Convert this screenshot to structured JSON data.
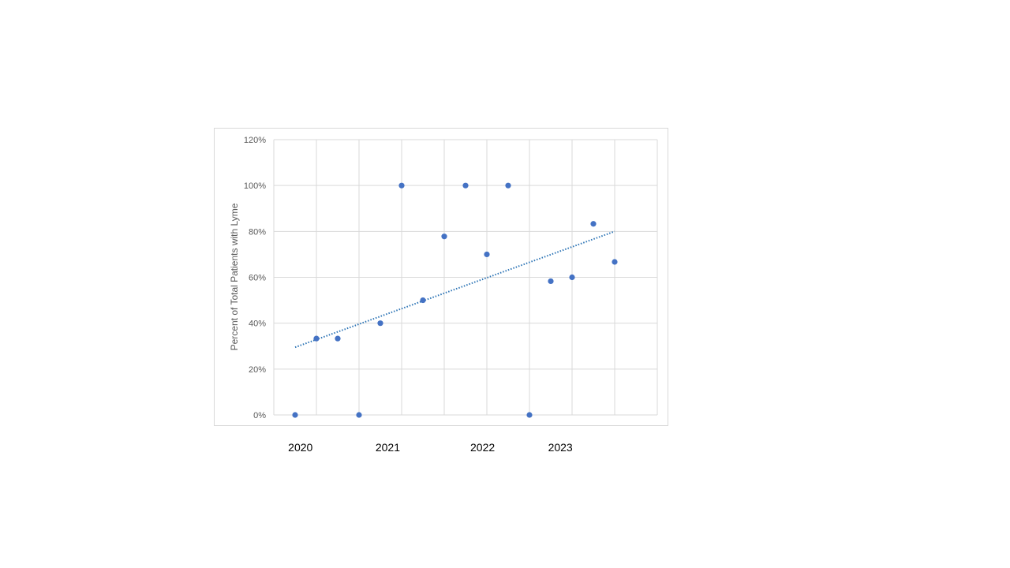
{
  "chart_data": {
    "type": "scatter",
    "title": "",
    "xlabel": "",
    "ylabel": "Percent of Total Patients with Lyme",
    "ylim": [
      0,
      1.2
    ],
    "y_ticks": [
      "0%",
      "20%",
      "40%",
      "60%",
      "80%",
      "100%",
      "120%"
    ],
    "x_year_labels": [
      "2020",
      "2021",
      "2022",
      "2023"
    ],
    "grid": true,
    "legend": "none",
    "colors": {
      "points": "#4472c4",
      "trendline": "#2e75b6",
      "grid": "#d9d9d9",
      "tick_text": "#595959"
    },
    "series": [
      {
        "values": [
          0.0,
          0.333,
          0.333,
          0.0,
          0.4,
          1.0,
          0.5,
          0.778,
          1.0,
          0.7,
          1.0,
          0.0,
          0.583,
          0.6,
          0.833,
          0.667
        ]
      }
    ],
    "trendline": {
      "type": "linear",
      "start": 0.295,
      "end": 0.8
    }
  }
}
